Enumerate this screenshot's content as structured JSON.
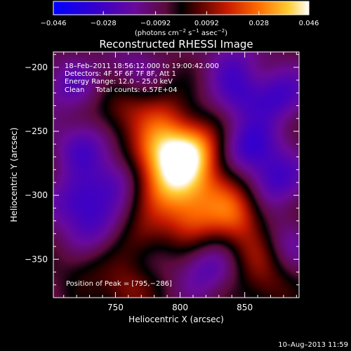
{
  "colorbar": {
    "tick_labels": [
      "−0.046",
      "−0.028",
      "−0.0092",
      "0.0092",
      "0.028",
      "0.046"
    ],
    "tick_values": [
      -0.046,
      -0.028,
      -0.0092,
      0.0092,
      0.028,
      0.046
    ],
    "range": [
      -0.046,
      0.046
    ],
    "unit_label_parts": {
      "pre": "(photons cm",
      "exp1": "−2",
      "mid1": " s",
      "exp2": "−1",
      "mid2": " asec",
      "exp3": "−2",
      "post": ")"
    }
  },
  "chart_data": {
    "type": "heatmap",
    "title": "Reconstructed RHESSI Image",
    "xlabel": "Heliocentric X (arcsec)",
    "ylabel": "Heliocentric Y (arcsec)",
    "xlim": [
      702,
      892
    ],
    "ylim": [
      -380,
      -188
    ],
    "x_ticks": [
      750,
      800,
      850
    ],
    "y_ticks": [
      -200,
      -250,
      -300,
      -350
    ],
    "x_tick_labels": [
      "750",
      "800",
      "850"
    ],
    "y_tick_labels": [
      "−200",
      "−250",
      "−300",
      "−350"
    ],
    "value_range": [
      -0.046,
      0.046
    ],
    "sources": [
      {
        "x": 795,
        "y": -286,
        "value": 0.046
      },
      {
        "x": 782,
        "y": -262,
        "value": 0.022
      },
      {
        "x": 812,
        "y": -262,
        "value": 0.028
      },
      {
        "x": 755,
        "y": -234,
        "value": 0.016
      },
      {
        "x": 790,
        "y": -236,
        "value": 0.014
      },
      {
        "x": 810,
        "y": -320,
        "value": 0.022
      },
      {
        "x": 845,
        "y": -318,
        "value": 0.02
      },
      {
        "x": 860,
        "y": -345,
        "value": 0.014
      },
      {
        "x": 770,
        "y": -332,
        "value": 0.012
      },
      {
        "x": 728,
        "y": -357,
        "value": 0.008
      },
      {
        "x": 758,
        "y": -375,
        "value": 0.016
      },
      {
        "x": 835,
        "y": -298,
        "value": 0.014
      },
      {
        "x": 868,
        "y": -372,
        "value": 0.012
      },
      {
        "x": 725,
        "y": -262,
        "value": -0.018
      },
      {
        "x": 752,
        "y": -288,
        "value": -0.018
      },
      {
        "x": 720,
        "y": -305,
        "value": -0.02
      },
      {
        "x": 855,
        "y": -262,
        "value": -0.024
      },
      {
        "x": 878,
        "y": -222,
        "value": -0.02
      },
      {
        "x": 845,
        "y": -222,
        "value": -0.016
      },
      {
        "x": 875,
        "y": -288,
        "value": -0.02
      },
      {
        "x": 842,
        "y": -195,
        "value": -0.012
      },
      {
        "x": 820,
        "y": -358,
        "value": -0.016
      },
      {
        "x": 733,
        "y": -327,
        "value": -0.014
      },
      {
        "x": 715,
        "y": -215,
        "value": -0.014
      },
      {
        "x": 880,
        "y": -338,
        "value": -0.012
      },
      {
        "x": 760,
        "y": -202,
        "value": -0.01
      }
    ],
    "annotations": [
      "18–Feb–2011 18:56:12.000 to 19:00:42.000",
      "Detectors: 4F 5F 6F 7F 8F, Att 1",
      "Energy Range: 12.0 – 25.0 keV",
      "Clean     Total counts: 6.57E+04",
      "Position of Peak = [795,−286]"
    ],
    "peak": [
      795,
      -286
    ]
  },
  "timestamp": "10–Aug–2013 11:59"
}
